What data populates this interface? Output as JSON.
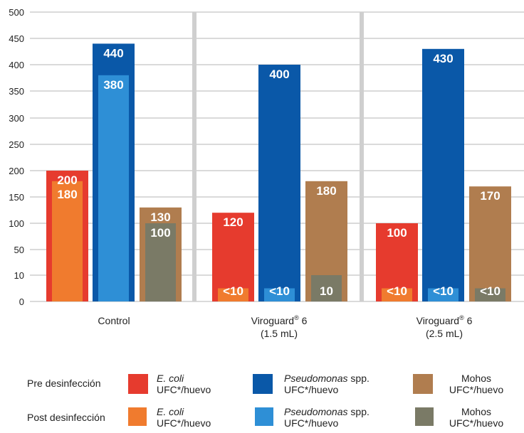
{
  "chart_data": {
    "type": "bar",
    "ylim": [
      0,
      500
    ],
    "y_ticks": [
      "0",
      "10",
      "50",
      "100",
      "150",
      "200",
      "250",
      "300",
      "350",
      "400",
      "450",
      "500"
    ],
    "groups": [
      {
        "label_lines": [
          "Control"
        ],
        "label_sup": ""
      },
      {
        "label_lines": [
          "Viroguard 6",
          "(1.5 mL)"
        ],
        "label_main": "Viroguard",
        "label_sup": "®",
        "label_after": " 6",
        "label_line2": "(1.5 mL)"
      },
      {
        "label_lines": [
          "Viroguard 6",
          "(2.5 mL)"
        ],
        "label_main": "Viroguard",
        "label_sup": "®",
        "label_after": " 6",
        "label_line2": "(2.5 mL)"
      }
    ],
    "series": [
      {
        "name": "Pre desinfección E. coli UFC*/huevo",
        "color": "#e63b2e",
        "values": [
          200,
          120,
          100
        ],
        "labels": [
          "200",
          "120",
          "100"
        ]
      },
      {
        "name": "Pre desinfección Pseudomonas spp. UFC*/huevo",
        "color": "#0a58a8",
        "values": [
          440,
          400,
          430
        ],
        "labels": [
          "440",
          "400",
          "430"
        ]
      },
      {
        "name": "Pre desinfección Mohos UFC*/huevo",
        "color": "#b07d4f",
        "values": [
          130,
          180,
          170
        ],
        "labels": [
          "130",
          "180",
          "170"
        ]
      },
      {
        "name": "Post desinfección E. coli UFC*/huevo",
        "color": "#f07b2e",
        "values": [
          180,
          5,
          5
        ],
        "labels": [
          "180",
          "<10",
          "<10"
        ]
      },
      {
        "name": "Post desinfección Pseudomonas spp. UFC*/huevo",
        "color": "#2e8fd6",
        "values": [
          380,
          5,
          5
        ],
        "labels": [
          "380",
          "<10",
          "<10"
        ]
      },
      {
        "name": "Post desinfección Mohos UFC*/huevo",
        "color": "#7a7a66",
        "values": [
          100,
          10,
          5
        ],
        "labels": [
          "100",
          "10",
          "<10"
        ]
      }
    ]
  },
  "legend": {
    "pre_label": "Pre desinfección",
    "post_label": "Post desinfección",
    "ecoli_name": "E. coli",
    "pseudo_name": "Pseudomonas",
    "pseudo_suffix": " spp.",
    "mohos_name": "Mohos",
    "unit": "UFC*/huevo"
  }
}
